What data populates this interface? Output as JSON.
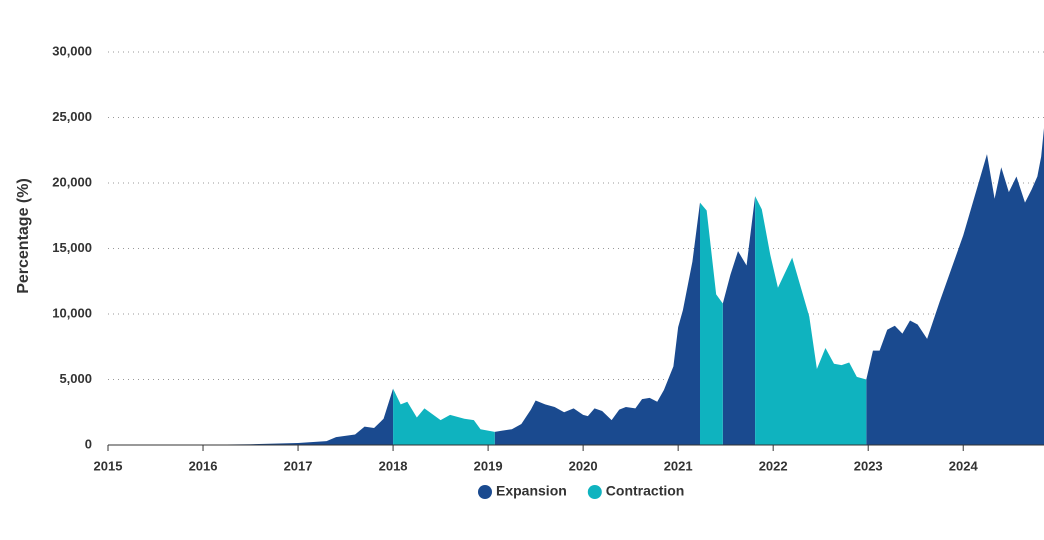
{
  "chart_data": {
    "type": "area",
    "y_label": "Percentage (%)",
    "xlim": [
      2015,
      2024.85
    ],
    "xticks": [
      2015,
      2016,
      2017,
      2018,
      2019,
      2020,
      2021,
      2022,
      2023,
      2024
    ],
    "ylim": [
      0,
      30000
    ],
    "yticks": [
      0,
      {
        "value": 5000,
        "label": "5,000"
      },
      {
        "value": 10000,
        "label": "10,000"
      },
      {
        "value": 15000,
        "label": "15,000"
      },
      {
        "value": 20000,
        "label": "20,000"
      },
      {
        "value": 25000,
        "label": "25,000"
      },
      {
        "value": 30000,
        "label": "30,000"
      }
    ],
    "grid": true,
    "legend": "bottom",
    "series": [
      {
        "name": "Expansion",
        "color": "#1a4a8f",
        "x": [
          2015,
          2016,
          2016.5,
          2017,
          2017.2,
          2017.3,
          2017.4,
          2017.6,
          2017.7,
          2017.8,
          2017.9,
          2018.0,
          null,
          2019.07,
          2019.15,
          2019.25,
          2019.35,
          2019.45,
          2019.5,
          2019.6,
          2019.7,
          2019.8,
          2019.9,
          2020.0,
          2020.05,
          2020.12,
          2020.2,
          2020.3,
          2020.38,
          2020.45,
          2020.55,
          2020.62,
          2020.7,
          2020.78,
          2020.85,
          2020.95,
          2021.0,
          2021.05,
          2021.15,
          2021.23,
          null,
          2021.47,
          2021.55,
          2021.63,
          2021.72,
          2021.81,
          null,
          2022.98,
          2023.05,
          2023.12,
          2023.2,
          2023.28,
          2023.36,
          2023.44,
          2023.52,
          2023.62,
          2023.75,
          2024.0,
          2024.25,
          2024.33,
          2024.4,
          2024.48,
          2024.56,
          2024.65,
          2024.72,
          2024.78,
          2024.82,
          2024.85
        ],
        "values": [
          0,
          20,
          60,
          150,
          250,
          300,
          600,
          800,
          1400,
          1300,
          2000,
          4300,
          null,
          1000,
          1100,
          1200,
          1600,
          2700,
          3400,
          3100,
          2900,
          2500,
          2800,
          2300,
          2200,
          2800,
          2600,
          1900,
          2700,
          2900,
          2800,
          3500,
          3600,
          3300,
          4200,
          6000,
          9000,
          10300,
          14000,
          18500,
          null,
          10800,
          13000,
          14800,
          13700,
          19000,
          null,
          5000,
          7200,
          7200,
          8800,
          9100,
          8500,
          9500,
          9200,
          8100,
          10900,
          16000,
          22200,
          18800,
          21200,
          19300,
          20500,
          18500,
          19500,
          20500,
          22000,
          24200
        ]
      },
      {
        "name": "Contraction",
        "color": "#0fb3bf",
        "x": [
          2018.0,
          2018.08,
          2018.15,
          2018.25,
          2018.33,
          2018.5,
          2018.6,
          2018.75,
          2018.85,
          2018.92,
          2019.07,
          null,
          2021.23,
          2021.3,
          2021.4,
          2021.47,
          null,
          2021.81,
          2021.88,
          2021.97,
          2022.05,
          2022.2,
          2022.3,
          2022.38,
          2022.46,
          2022.55,
          2022.64,
          2022.72,
          2022.8,
          2022.88,
          2022.98
        ],
        "values": [
          4300,
          3100,
          3300,
          2100,
          2800,
          1900,
          2300,
          2000,
          1900,
          1200,
          1000,
          null,
          18500,
          17900,
          11500,
          10800,
          null,
          19000,
          18000,
          14500,
          12000,
          14300,
          11800,
          9800,
          5800,
          7400,
          6200,
          6100,
          6300,
          5200,
          5000
        ]
      }
    ]
  }
}
